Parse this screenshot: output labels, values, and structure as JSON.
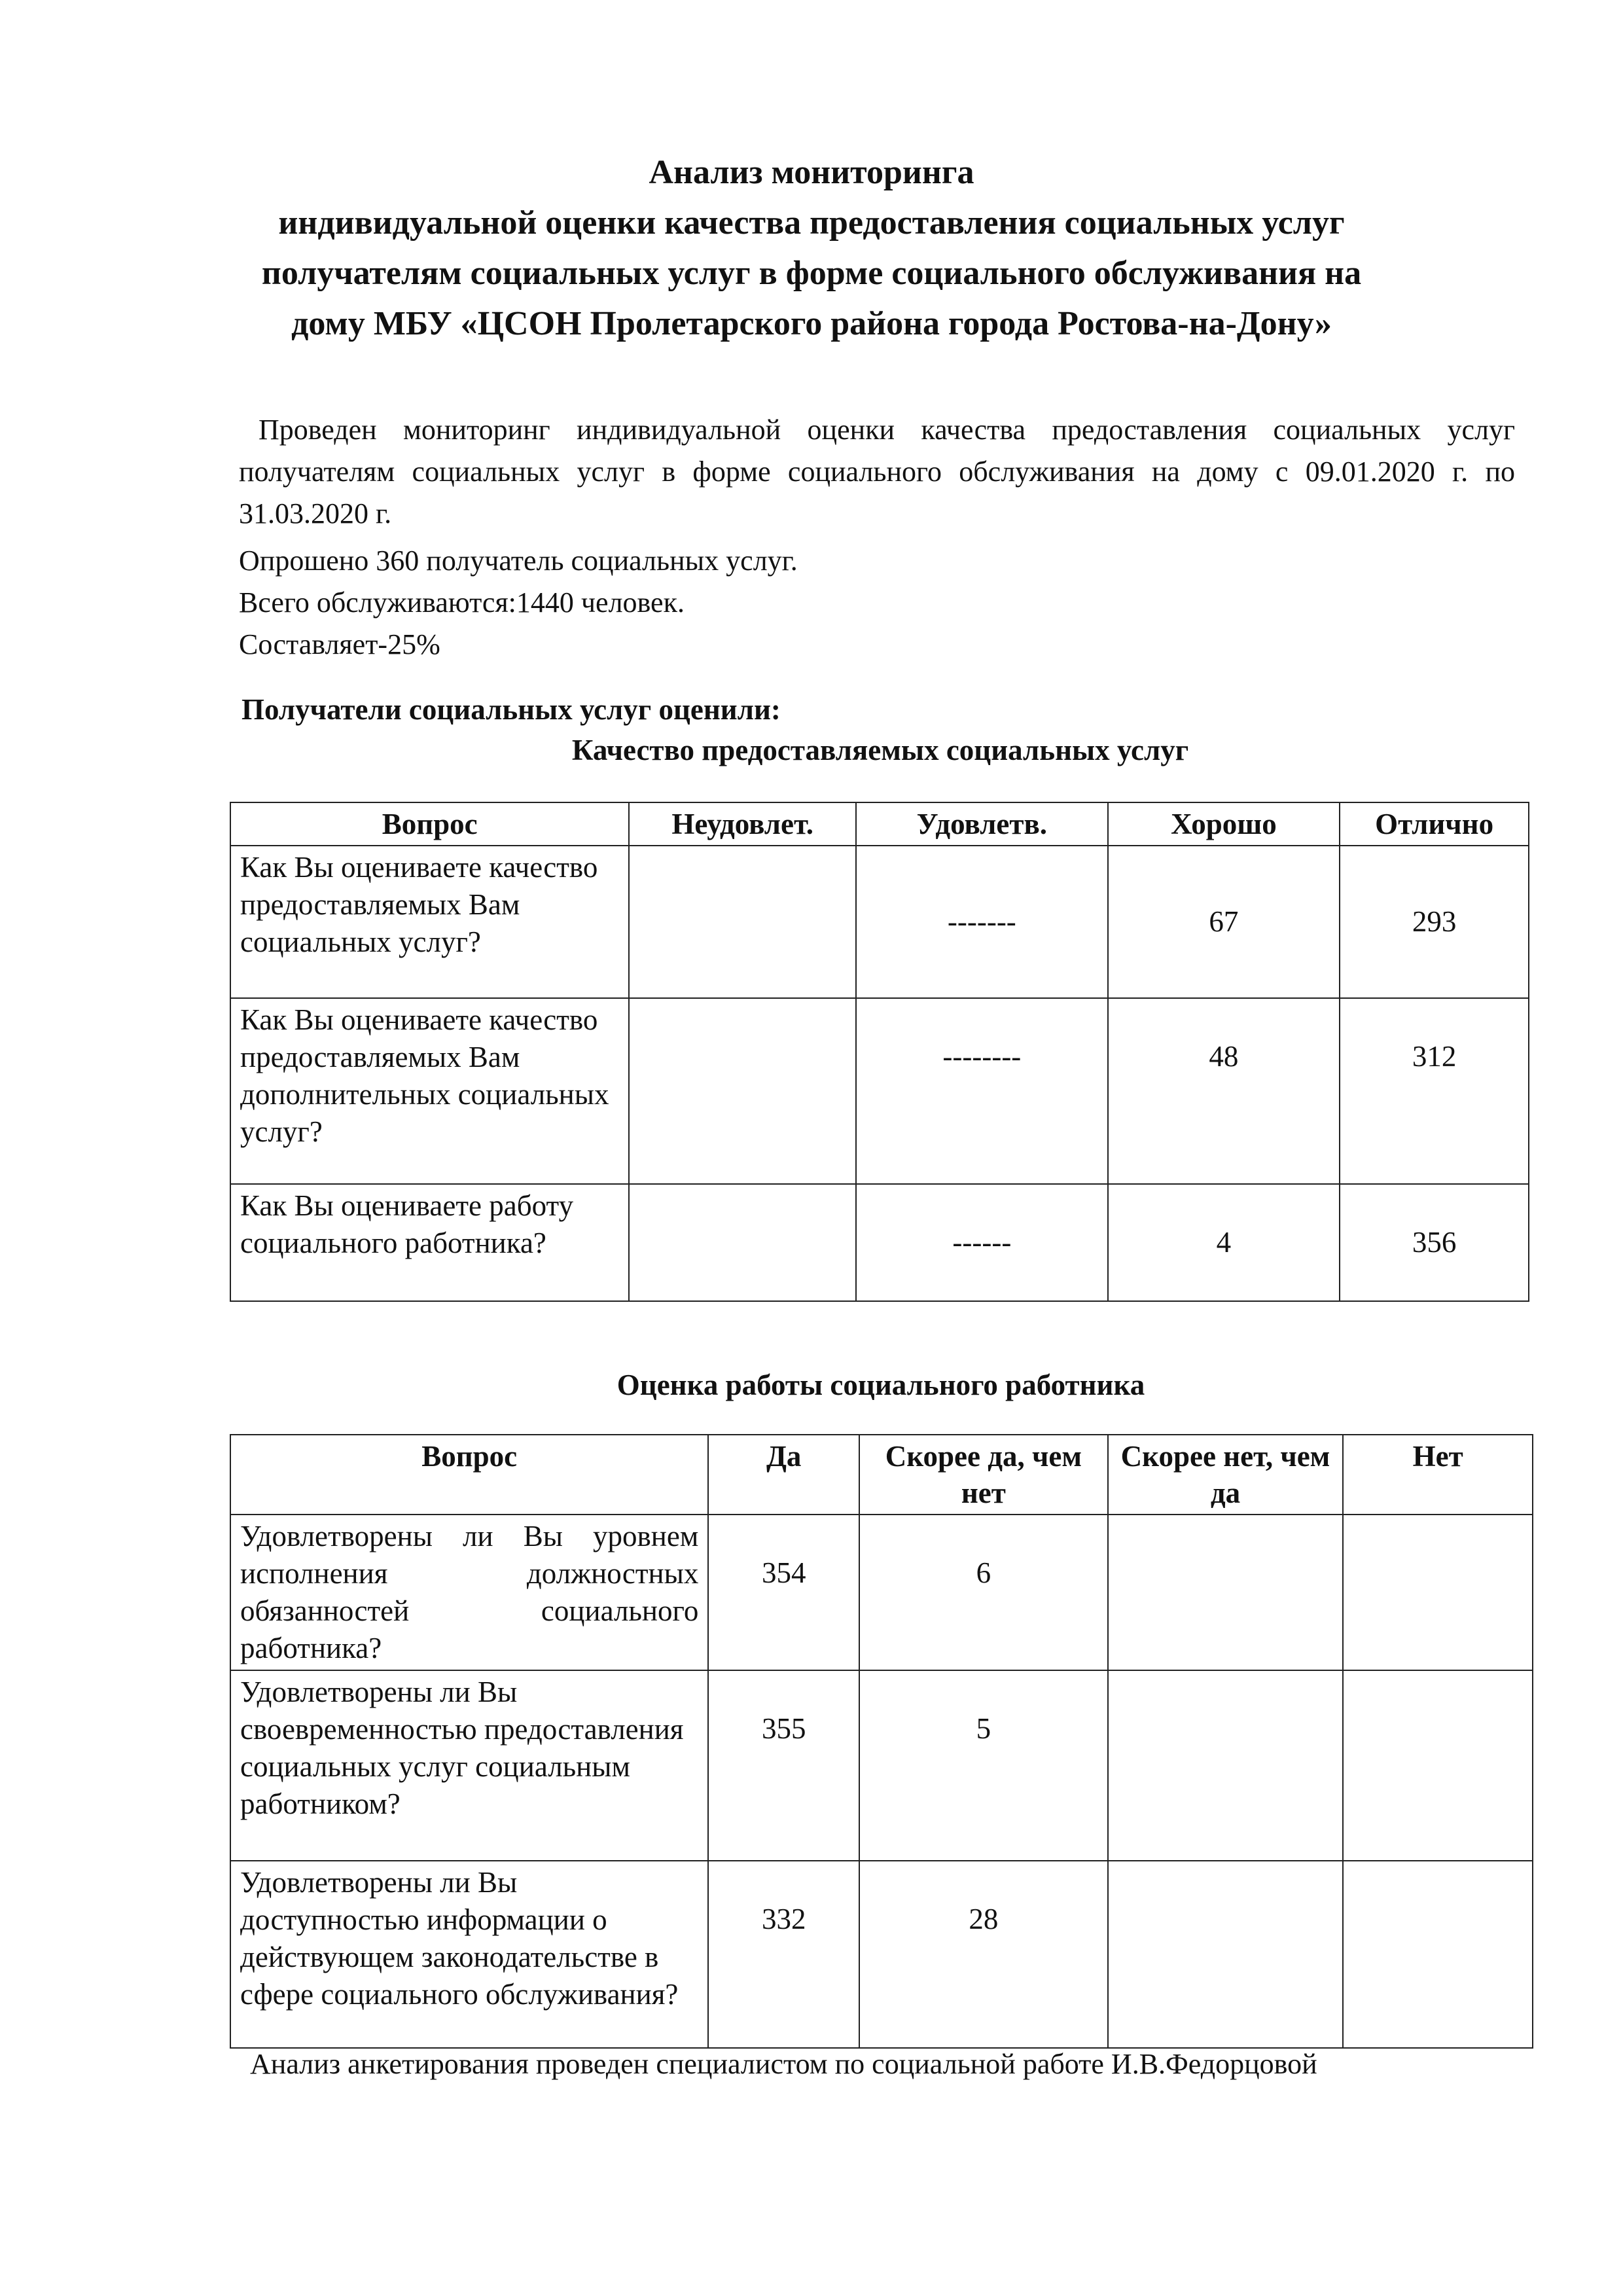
{
  "title": {
    "line1": "Анализ мониторинга",
    "line2": "индивидуальной оценки качества предоставления социальных услуг",
    "line3": "получателям социальных услуг в форме социального обслуживания на",
    "line4": "дому МБУ «ЦСОН Пролетарского района города Ростова-на-Дону»"
  },
  "intro": {
    "paragraph": "Проведен мониторинг индивидуальной оценки качества предоставления социальных услуг получателям социальных услуг в форме социального обслуживания на дому с 09.01.2020 г.  по  31.03.2020 г.",
    "surveyed": "Опрошено  360  получатель социальных услуг.",
    "total": "Всего обслуживаются:1440 человек.",
    "share": "Составляет-25%"
  },
  "section_heading": "Получатели социальных услуг оценили:",
  "table1": {
    "caption": "Качество предоставляемых социальных услуг",
    "headers": [
      "Вопрос",
      "Неудовлет.",
      "Удовлетв.",
      "Хорошо",
      "Отлично"
    ],
    "rows": [
      {
        "question": "Как Вы оцениваете качество предоставляемых Вам социальных услуг?",
        "unsatisfactory": "",
        "satisfactory": "-------",
        "good": "67",
        "excellent": "293"
      },
      {
        "question": "Как Вы оцениваете качество предоставляемых Вам дополнительных социальных услуг?",
        "unsatisfactory": "",
        "satisfactory": "--------",
        "good": "48",
        "excellent": "312"
      },
      {
        "question": "Как Вы оцениваете работу социального работника?",
        "unsatisfactory": "",
        "satisfactory": "------",
        "good": "4",
        "excellent": "356"
      }
    ]
  },
  "table2": {
    "caption": "Оценка работы социального работника",
    "headers": [
      "Вопрос",
      "Да",
      "Скорее да, чем нет",
      "Скорее нет, чем да",
      "Нет"
    ],
    "rows": [
      {
        "question": "Удовлетворены ли Вы уровнем исполнения должностных обязанностей социального работника?",
        "yes": "354",
        "rather_yes": "6",
        "rather_no": "",
        "no": ""
      },
      {
        "question": "Удовлетворены ли Вы своевременностью предоставления социальных услуг социальным работником?",
        "yes": "355",
        "rather_yes": "5",
        "rather_no": "",
        "no": ""
      },
      {
        "question": "Удовлетворены ли Вы доступностью информации о действующем законодательстве в сфере социального обслуживания?",
        "yes": "332",
        "rather_yes": "28",
        "rather_no": "",
        "no": ""
      }
    ]
  },
  "footer": "Анализ  анкетирования проведен специалистом по социальной работе И.В.Федорцовой"
}
